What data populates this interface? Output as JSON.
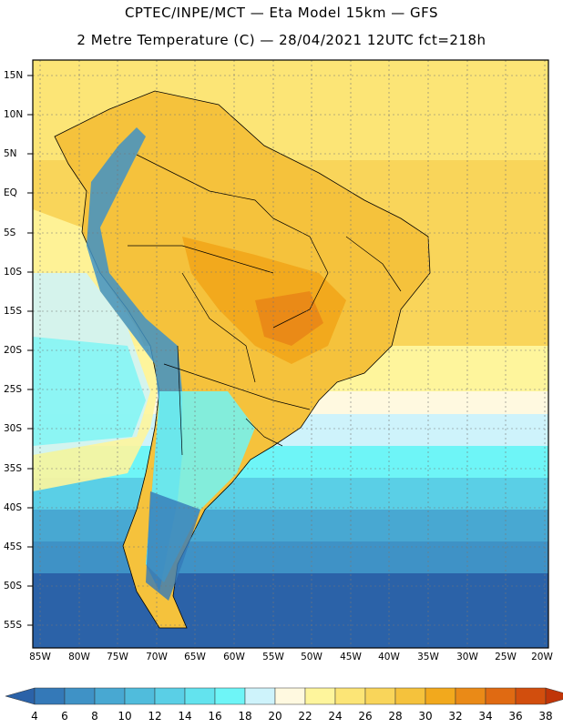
{
  "header": {
    "line1": "CPTEC/INPE/MCT —   Eta Model 15km — GFS",
    "line2": "2 Metre Temperature (C) — 28/04/2021 12UTC fct=218h"
  },
  "map": {
    "region": "South America",
    "lat_labels": [
      "15N",
      "10N",
      "5N",
      "EQ",
      "5S",
      "10S",
      "15S",
      "20S",
      "25S",
      "30S",
      "35S",
      "40S",
      "45S",
      "50S",
      "55S"
    ],
    "lon_labels": [
      "85W",
      "80W",
      "75W",
      "70W",
      "65W",
      "60W",
      "55W",
      "50W",
      "45W",
      "40W",
      "35W",
      "30W",
      "25W",
      "20W"
    ]
  },
  "colorbar": {
    "labels": [
      "4",
      "6",
      "8",
      "10",
      "12",
      "14",
      "16",
      "18",
      "20",
      "22",
      "24",
      "26",
      "28",
      "30",
      "32",
      "34",
      "36",
      "38"
    ],
    "colors": [
      "#2b62a8",
      "#3479b8",
      "#3f92c6",
      "#48a8d2",
      "#50bcdc",
      "#5acfe6",
      "#63e3ee",
      "#6ef5f7",
      "#cef3fb",
      "#fff9e0",
      "#fef59c",
      "#fce576",
      "#f9d55a",
      "#f5c23c",
      "#f2a91d",
      "#ea8a17",
      "#e06a12",
      "#d24e0d",
      "#c03508"
    ]
  }
}
